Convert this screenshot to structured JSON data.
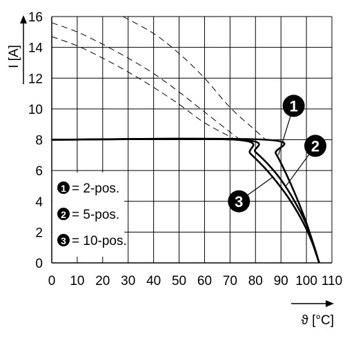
{
  "chart_data": {
    "type": "line",
    "xlabel": "ϑ [°C]",
    "ylabel": "I [A]",
    "xlim": [
      0,
      110
    ],
    "ylim": [
      0,
      16
    ],
    "xticks": [
      0,
      10,
      20,
      30,
      40,
      50,
      60,
      70,
      80,
      90,
      100,
      110
    ],
    "yticks": [
      0,
      2,
      4,
      6,
      8,
      10,
      12,
      14,
      16
    ],
    "grid": true,
    "legend_position": "left",
    "legend": [
      {
        "badge": "1",
        "label": "= 2-pos."
      },
      {
        "badge": "2",
        "label": "= 5-pos."
      },
      {
        "badge": "3",
        "label": "= 10-pos."
      }
    ],
    "series": [
      {
        "badge": "1",
        "style": "solid",
        "x": [
          0,
          84,
          88,
          92,
          96,
          100,
          103,
          105
        ],
        "y": [
          8,
          8,
          7.1,
          5.8,
          4.3,
          2.6,
          1.0,
          0
        ]
      },
      {
        "badge": "2",
        "style": "solid",
        "x": [
          0,
          74,
          80,
          85,
          90,
          95,
          100,
          103,
          105
        ],
        "y": [
          8,
          8,
          7.2,
          6.4,
          5.4,
          4.1,
          2.5,
          1.1,
          0
        ]
      },
      {
        "badge": "3",
        "style": "solid",
        "x": [
          0,
          72,
          78,
          84,
          90,
          95,
          100,
          103,
          105
        ],
        "y": [
          8,
          8,
          7.1,
          6.1,
          4.9,
          3.7,
          2.2,
          1.0,
          0
        ]
      },
      {
        "badge": "1",
        "style": "dashed",
        "x": [
          28,
          40,
          50,
          60,
          70,
          80,
          84
        ],
        "y": [
          16,
          14.9,
          13.6,
          12.0,
          10.1,
          8.6,
          8
        ]
      },
      {
        "badge": "2",
        "style": "dashed",
        "x": [
          0,
          10,
          20,
          30,
          40,
          50,
          60,
          70,
          74
        ],
        "y": [
          15.6,
          15.0,
          14.2,
          13.3,
          12.3,
          11.1,
          9.8,
          8.5,
          8
        ]
      },
      {
        "badge": "3",
        "style": "dashed",
        "x": [
          0,
          10,
          20,
          30,
          40,
          50,
          60,
          70,
          72
        ],
        "y": [
          14.7,
          14.1,
          13.3,
          12.4,
          11.4,
          10.3,
          9.1,
          8.2,
          8
        ]
      }
    ],
    "callouts": [
      {
        "badge": "1",
        "x": 95,
        "y": 10.2
      },
      {
        "badge": "2",
        "x": 103.5,
        "y": 7.6
      },
      {
        "badge": "3",
        "x": 73.5,
        "y": 4.0
      }
    ]
  },
  "colors": {
    "line": "#000000",
    "grid": "#000000",
    "badge_fill": "#000000",
    "badge_text": "#ffffff",
    "background": "#ffffff"
  }
}
